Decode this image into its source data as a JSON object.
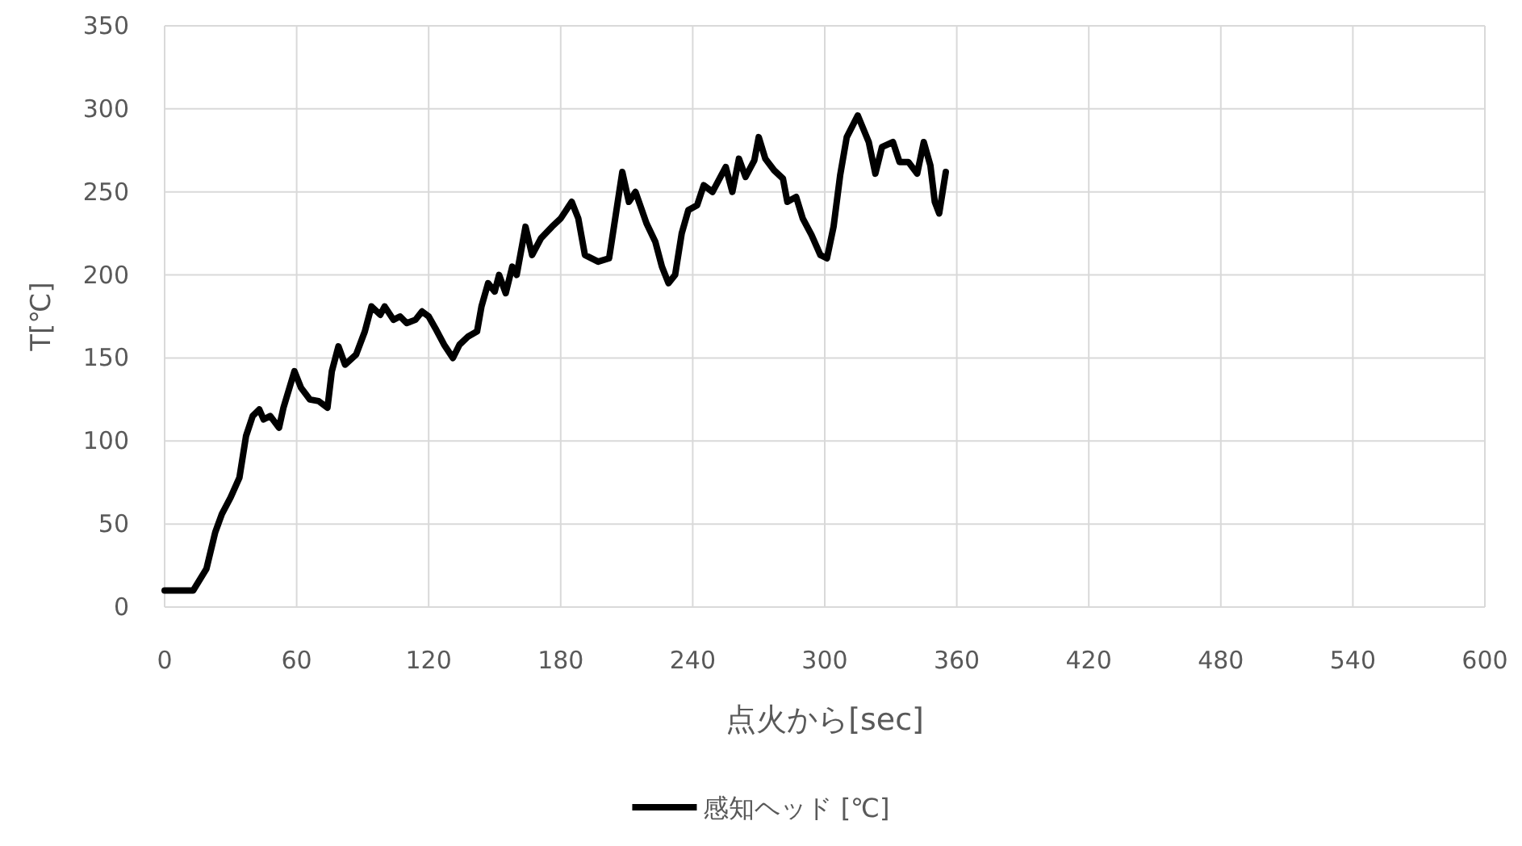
{
  "chart_data": {
    "type": "line",
    "xlabel": "点火から[sec]",
    "ylabel": "T[℃]",
    "xlim": [
      0,
      600
    ],
    "xticks": [
      0,
      60,
      120,
      180,
      240,
      300,
      360,
      420,
      480,
      540,
      600
    ],
    "ylim": [
      0,
      350
    ],
    "yticks": [
      0,
      50,
      100,
      150,
      200,
      250,
      300,
      350
    ],
    "grid": true,
    "legend": "bottom",
    "series": [
      {
        "name": "感知ヘッド [℃]",
        "color": "#000000",
        "x": [
          0,
          13,
          19,
          23,
          26,
          30,
          34,
          37,
          40,
          43,
          45,
          48,
          52,
          54,
          59,
          62,
          66,
          70,
          74,
          76,
          79,
          82,
          87,
          91,
          94,
          98,
          100,
          104,
          107,
          110,
          114,
          117,
          120,
          123,
          127,
          131,
          134,
          138,
          142,
          144,
          147,
          150,
          152,
          155,
          158,
          160,
          164,
          167,
          171,
          176,
          180,
          185,
          188,
          191,
          197,
          202,
          208,
          211,
          214,
          219,
          223,
          226,
          229,
          232,
          235,
          238,
          242,
          245,
          249,
          253,
          255,
          258,
          261,
          264,
          268,
          270,
          273,
          277,
          281,
          283,
          287,
          290,
          294,
          298,
          301,
          304,
          307,
          310,
          315,
          320,
          323,
          326,
          331,
          334,
          338,
          342,
          345,
          348,
          350,
          352,
          355
        ],
        "values": [
          10,
          10,
          23,
          45,
          56,
          66,
          78,
          103,
          115,
          119,
          113,
          115,
          108,
          120,
          142,
          132,
          125,
          124,
          120,
          142,
          157,
          146,
          152,
          166,
          181,
          176,
          181,
          173,
          175,
          171,
          173,
          178,
          175,
          168,
          158,
          150,
          158,
          163,
          166,
          181,
          195,
          190,
          200,
          189,
          205,
          200,
          229,
          212,
          222,
          229,
          234,
          244,
          234,
          212,
          208,
          210,
          262,
          244,
          250,
          231,
          220,
          205,
          195,
          200,
          225,
          239,
          242,
          254,
          250,
          260,
          265,
          250,
          270,
          259,
          269,
          283,
          270,
          263,
          258,
          244,
          247,
          234,
          224,
          212,
          210,
          229,
          260,
          283,
          296,
          280,
          261,
          277,
          280,
          268,
          268,
          261,
          280,
          266,
          244,
          237,
          262
        ]
      }
    ]
  }
}
